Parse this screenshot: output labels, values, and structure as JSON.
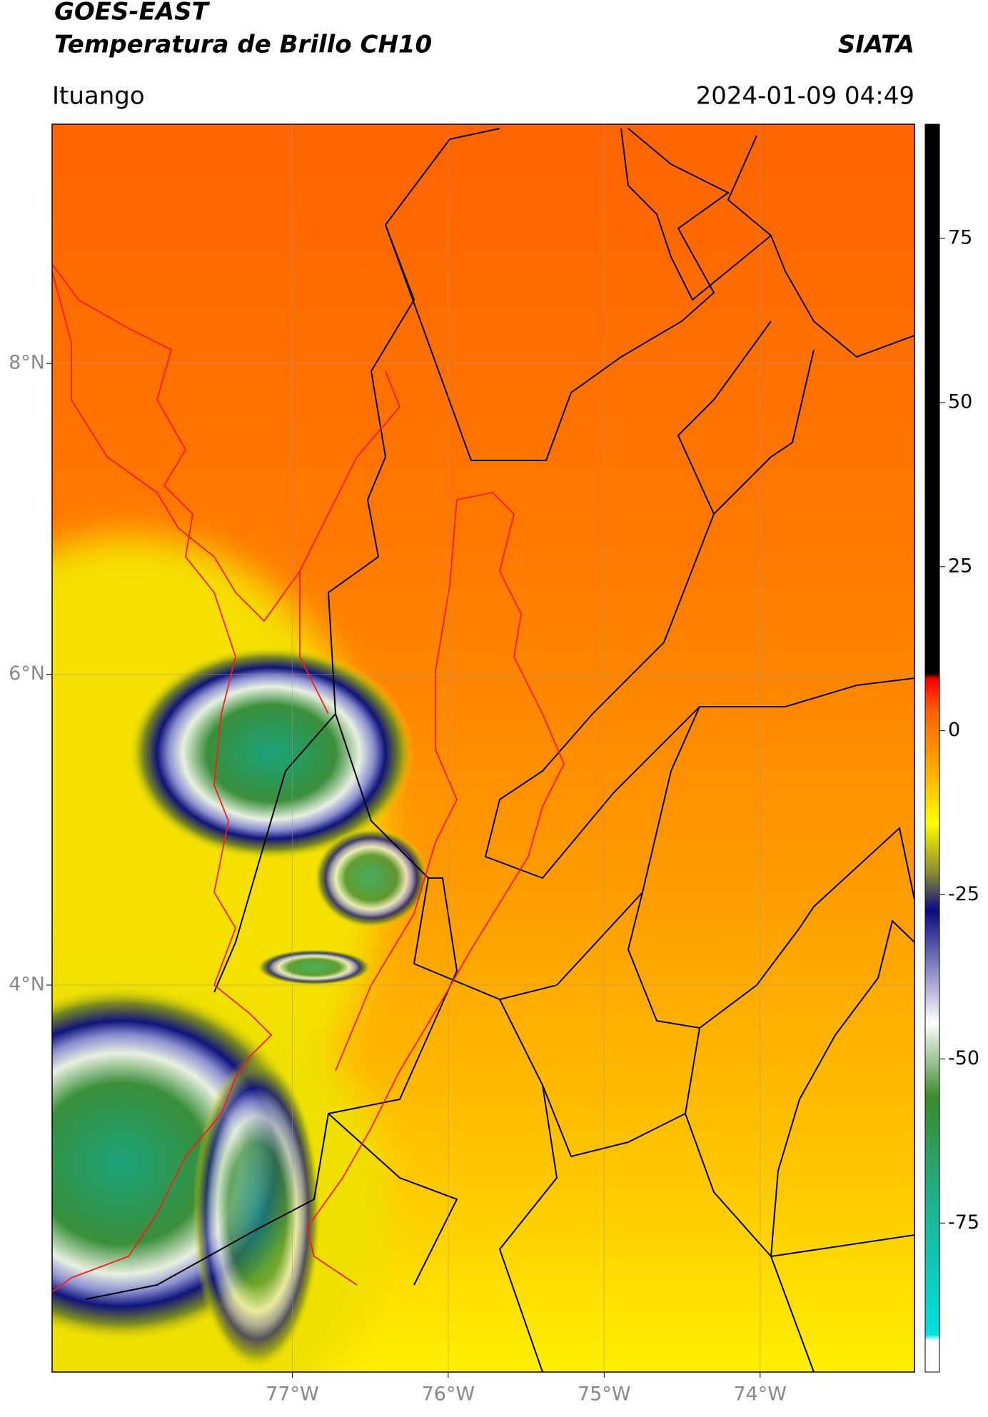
{
  "header": {
    "title": "GOES-EAST",
    "subtitle": "Temperatura de Brillo CH10",
    "brand": "SIATA",
    "location": "Ituango",
    "timestamp": "2024-01-09 04:49"
  },
  "map": {
    "lat_lim": [
      1.51,
      9.54
    ],
    "lon_lim": [
      -78.54,
      -73.01
    ],
    "lat_ticks": [
      {
        "value": 8,
        "label": "8°N"
      },
      {
        "value": 6,
        "label": "6°N"
      },
      {
        "value": 4,
        "label": "4°N"
      }
    ],
    "lon_ticks": [
      {
        "value": -77,
        "label": "77°W"
      },
      {
        "value": -76,
        "label": "76°W"
      },
      {
        "value": -75,
        "label": "75°W"
      },
      {
        "value": -74,
        "label": "74°W"
      }
    ],
    "grid": true
  },
  "colorbar": {
    "lim": [
      -97.7,
      92.4
    ],
    "ticks": [
      75,
      50,
      25,
      0,
      -25,
      -50,
      -75
    ]
  }
}
